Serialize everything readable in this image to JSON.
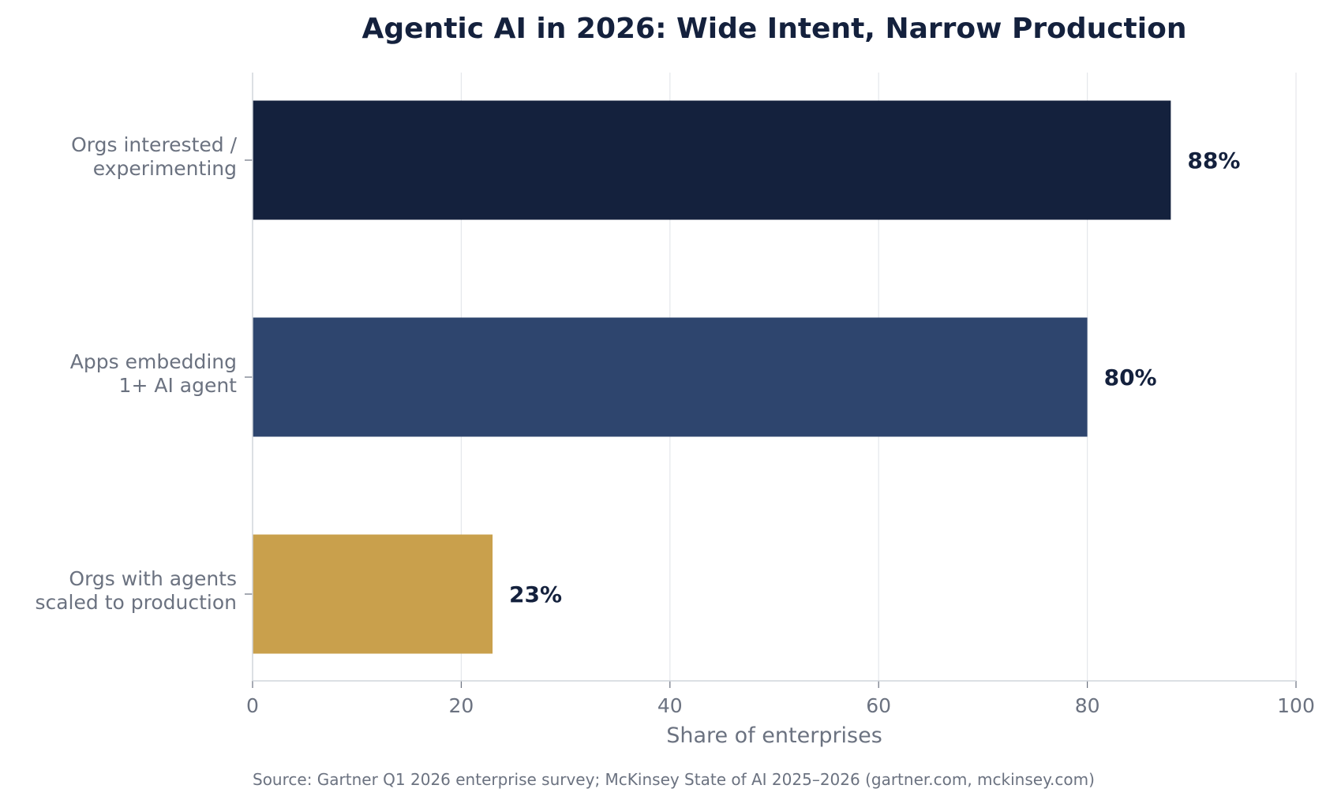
{
  "chart_data": {
    "type": "bar",
    "orientation": "horizontal",
    "title": "Agentic AI in 2026: Wide Intent, Narrow Production",
    "xlabel": "Share of enterprises",
    "ylabel": "",
    "xlim": [
      0,
      100
    ],
    "xticks": [
      "0",
      "20",
      "40",
      "60",
      "80",
      "100"
    ],
    "grid": "vertical",
    "categories": [
      [
        "Orgs interested /",
        "experimenting"
      ],
      [
        "Apps embedding",
        "1+ AI agent"
      ],
      [
        "Orgs with agents",
        "scaled to production"
      ]
    ],
    "values": [
      88,
      80,
      23
    ],
    "data_labels": [
      "88%",
      "80%",
      "23%"
    ],
    "colors": [
      "#14213d",
      "#2e456e",
      "#c9a04c"
    ],
    "source": "Source: Gartner Q1 2026 enterprise survey; McKinsey State of AI 2025–2026 (gartner.com, mckinsey.com)"
  }
}
